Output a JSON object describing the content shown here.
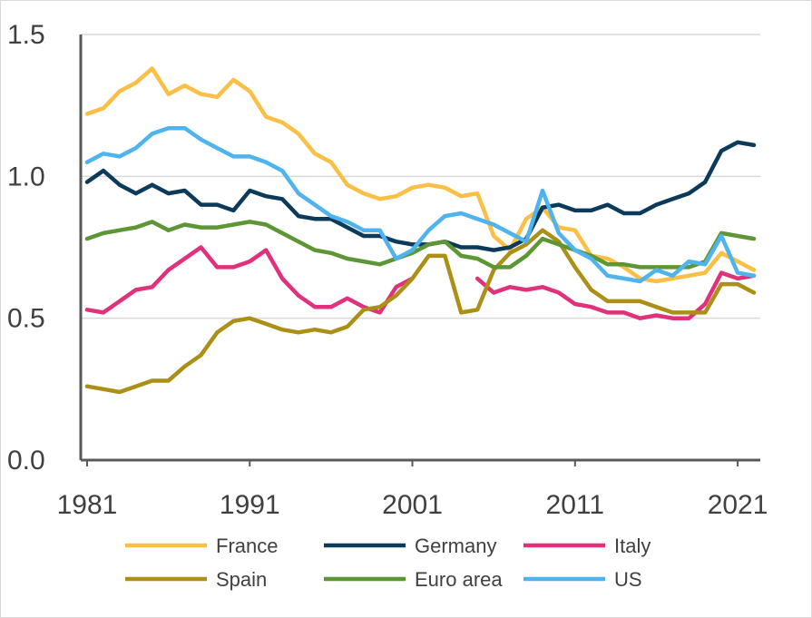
{
  "chart_data": {
    "type": "line",
    "title": "",
    "xlabel": "",
    "ylabel": "",
    "xlim": [
      1981,
      2022
    ],
    "ylim": [
      0,
      1.5
    ],
    "x_ticks": [
      1981,
      1991,
      2001,
      2011,
      2021
    ],
    "x_tick_labels": [
      "1981",
      "1991",
      "2001",
      "2011",
      "2021"
    ],
    "y_ticks": [
      0,
      0.5,
      1.0,
      1.5
    ],
    "y_tick_labels": [
      "0.0",
      "0.5",
      "1.0",
      "1.5"
    ],
    "grid": "horizontal",
    "legend_position": "bottom",
    "x": [
      1981,
      1982,
      1983,
      1984,
      1985,
      1986,
      1987,
      1988,
      1989,
      1990,
      1991,
      1992,
      1993,
      1994,
      1995,
      1996,
      1997,
      1998,
      1999,
      2000,
      2001,
      2002,
      2003,
      2004,
      2005,
      2006,
      2007,
      2008,
      2009,
      2010,
      2011,
      2012,
      2013,
      2014,
      2015,
      2016,
      2017,
      2018,
      2019,
      2020,
      2021,
      2022
    ],
    "series": [
      {
        "name": "France",
        "color": "#fbbf45",
        "values": [
          1.22,
          1.24,
          1.3,
          1.33,
          1.38,
          1.29,
          1.32,
          1.29,
          1.28,
          1.34,
          1.3,
          1.21,
          1.19,
          1.15,
          1.08,
          1.05,
          0.97,
          0.94,
          0.92,
          0.93,
          0.96,
          0.97,
          0.96,
          0.93,
          0.94,
          0.79,
          0.74,
          0.85,
          0.89,
          0.82,
          0.81,
          0.72,
          0.71,
          0.68,
          0.64,
          0.63,
          0.64,
          0.65,
          0.66,
          0.73,
          0.7,
          0.67
        ]
      },
      {
        "name": "Germany",
        "color": "#0c3a5b",
        "values": [
          0.98,
          1.02,
          0.97,
          0.94,
          0.97,
          0.94,
          0.95,
          0.9,
          0.9,
          0.88,
          0.95,
          0.93,
          0.92,
          0.86,
          0.85,
          0.85,
          0.82,
          0.79,
          0.79,
          0.77,
          0.76,
          0.76,
          0.77,
          0.75,
          0.75,
          0.74,
          0.75,
          0.78,
          0.89,
          0.9,
          0.88,
          0.88,
          0.9,
          0.87,
          0.87,
          0.9,
          0.92,
          0.94,
          0.98,
          1.09,
          1.12,
          1.11
        ]
      },
      {
        "name": "Italy",
        "color": "#e0317a",
        "values": [
          0.53,
          0.52,
          0.56,
          0.6,
          0.61,
          0.67,
          0.71,
          0.75,
          0.68,
          0.68,
          0.7,
          0.74,
          0.64,
          0.58,
          0.54,
          0.54,
          0.57,
          0.54,
          0.52,
          0.61,
          0.64,
          null,
          null,
          null,
          0.64,
          0.59,
          0.61,
          0.6,
          0.61,
          0.59,
          0.55,
          0.54,
          0.52,
          0.52,
          0.5,
          0.51,
          0.5,
          0.5,
          0.55,
          0.66,
          0.64,
          0.65
        ]
      },
      {
        "name": "Spain",
        "color": "#ac8f16",
        "values": [
          0.26,
          0.25,
          0.24,
          0.26,
          0.28,
          0.28,
          0.33,
          0.37,
          0.45,
          0.49,
          0.5,
          0.48,
          0.46,
          0.45,
          0.46,
          0.45,
          0.47,
          0.53,
          0.54,
          0.58,
          0.64,
          0.72,
          0.72,
          0.52,
          0.53,
          0.67,
          0.73,
          0.76,
          0.81,
          0.77,
          0.68,
          0.6,
          0.56,
          0.56,
          0.56,
          0.54,
          0.52,
          0.52,
          0.52,
          0.62,
          0.62,
          0.59
        ]
      },
      {
        "name": "Euro area",
        "color": "#5d9634",
        "values": [
          0.78,
          0.8,
          0.81,
          0.82,
          0.84,
          0.81,
          0.83,
          0.82,
          0.82,
          0.83,
          0.84,
          0.83,
          0.8,
          0.77,
          0.74,
          0.73,
          0.71,
          0.7,
          0.69,
          0.71,
          0.73,
          0.76,
          0.77,
          0.72,
          0.71,
          0.68,
          0.68,
          0.72,
          0.78,
          0.76,
          0.74,
          0.72,
          0.69,
          0.69,
          0.68,
          0.68,
          0.68,
          0.68,
          0.7,
          0.8,
          0.79,
          0.78
        ]
      },
      {
        "name": "US",
        "color": "#4fb3ee",
        "values": [
          1.05,
          1.08,
          1.07,
          1.1,
          1.15,
          1.17,
          1.17,
          1.13,
          1.1,
          1.07,
          1.07,
          1.05,
          1.02,
          0.94,
          0.9,
          0.86,
          0.84,
          0.81,
          0.81,
          0.71,
          0.74,
          0.81,
          0.86,
          0.87,
          0.85,
          0.83,
          0.8,
          0.77,
          0.95,
          0.8,
          0.74,
          0.71,
          0.65,
          0.64,
          0.63,
          0.67,
          0.65,
          0.7,
          0.69,
          0.79,
          0.66,
          0.65
        ]
      }
    ]
  }
}
